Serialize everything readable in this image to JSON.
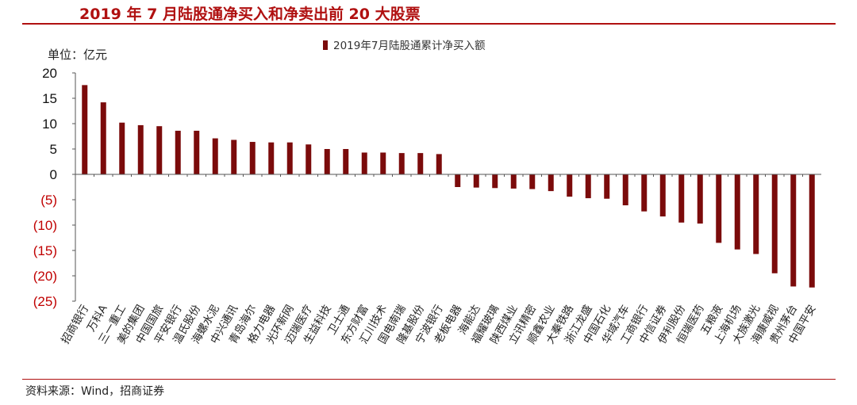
{
  "page": {
    "title": "2019 年 7 月陆股通净买入和净卖出前 20 大股票",
    "source": "资料来源：Wind，招商证券"
  },
  "colors": {
    "accent": "#b01010",
    "bar": "#7b0b0b",
    "negative_tick": "#c00000",
    "axis": "#555555"
  },
  "chart_data": {
    "type": "bar",
    "title": "",
    "ylabel": "单位：亿元",
    "xlabel": "",
    "ylim": [
      -25,
      20
    ],
    "yticks": [
      20,
      15,
      10,
      5,
      0,
      -5,
      -10,
      -15,
      -20,
      -25
    ],
    "ytick_labels": [
      "20",
      "15",
      "10",
      "5",
      "0",
      "(5)",
      "(10)",
      "(15)",
      "(20)",
      "(25)"
    ],
    "legend": [
      "2019年7月陆股通累计净买入额"
    ],
    "legend_position": "top-center",
    "categories": [
      "招商银行",
      "万科A",
      "三一重工",
      "美的集团",
      "中国国旅",
      "平安银行",
      "温氏股份",
      "海螺水泥",
      "中兴通讯",
      "青岛海尔",
      "格力电器",
      "光环新网",
      "迈瑞医疗",
      "生益科技",
      "卫士通",
      "东方财富",
      "汇川技术",
      "国电南瑞",
      "隆基股份",
      "宁波银行",
      "老板电器",
      "海能达",
      "福耀玻璃",
      "陕西煤业",
      "立讯精密",
      "顺鑫农业",
      "大秦铁路",
      "浙江龙盛",
      "中国石化",
      "华域汽车",
      "工商银行",
      "中信证券",
      "伊利股份",
      "恒瑞医药",
      "五粮液",
      "上海机场",
      "大族激光",
      "海康威视",
      "贵州茅台",
      "中国平安"
    ],
    "series": [
      {
        "name": "2019年7月陆股通累计净买入额",
        "values": [
          17.6,
          14.2,
          10.2,
          9.7,
          9.5,
          8.6,
          8.6,
          7.1,
          6.8,
          6.4,
          6.3,
          6.3,
          5.9,
          5.0,
          5.0,
          4.3,
          4.3,
          4.2,
          4.2,
          4.0,
          -2.5,
          -2.6,
          -2.7,
          -2.8,
          -2.9,
          -3.3,
          -4.4,
          -4.7,
          -4.8,
          -6.1,
          -7.3,
          -8.3,
          -9.5,
          -9.7,
          -13.5,
          -14.8,
          -15.7,
          -19.5,
          -22.1,
          -22.3
        ]
      }
    ]
  }
}
